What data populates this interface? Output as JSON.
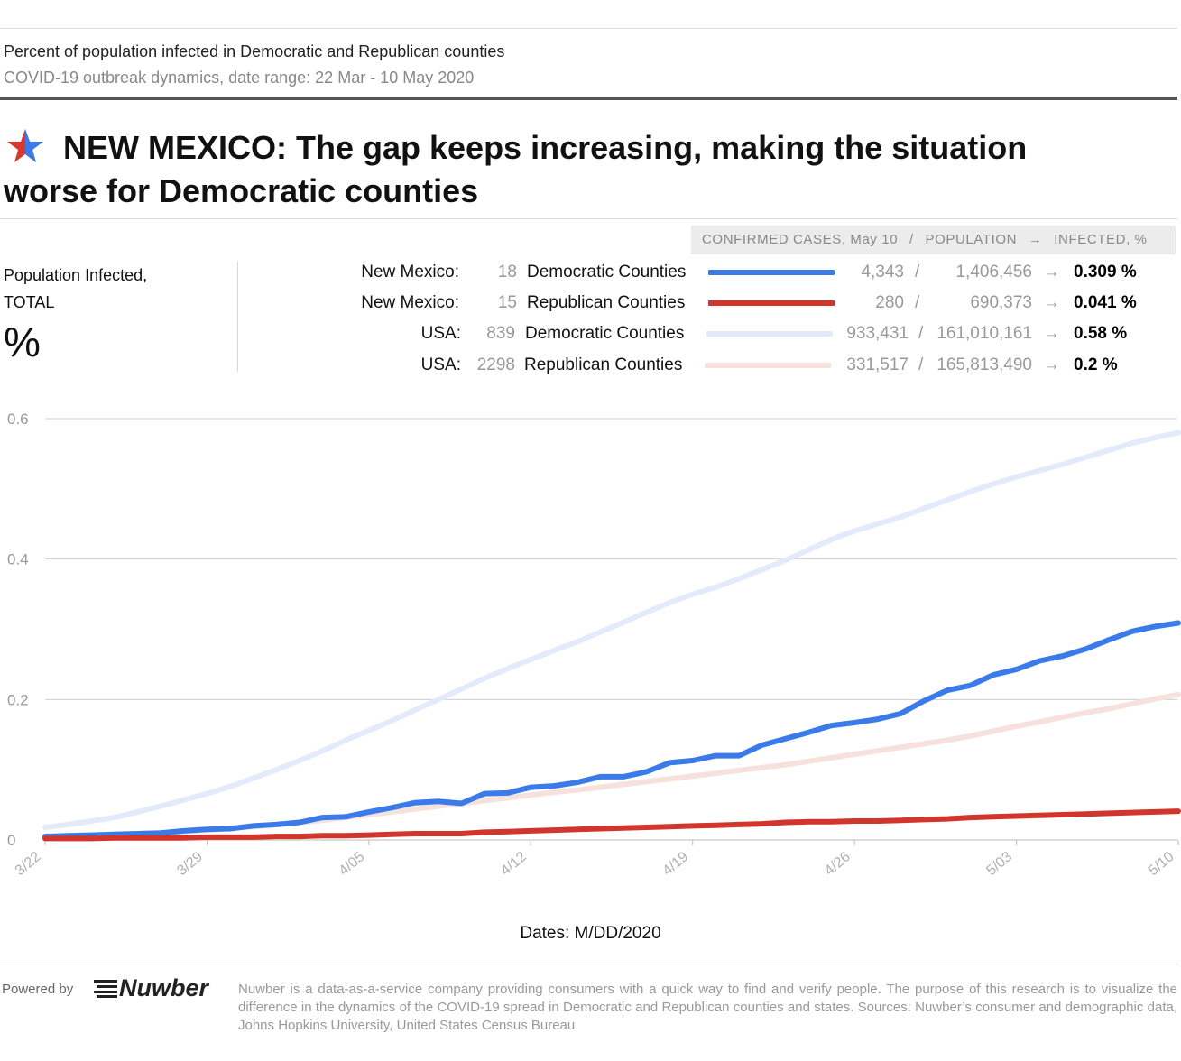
{
  "header": {
    "subtitle": "Percent of population infected in Democratic and Republican counties",
    "date_range": "COVID-19 outbreak dynamics, date range: 22 Mar - 10 May 2020",
    "headline": "NEW MEXICO: The gap keeps increasing, making the situation worse for Democratic counties",
    "star_colors": [
      "#d9382e",
      "#3b7be9"
    ]
  },
  "side_label": {
    "line1": "Population Infected,",
    "line2": "TOTAL",
    "unit": "%"
  },
  "legend": {
    "header": {
      "cases": "CONFIRMED CASES, May 10",
      "sep": "/",
      "population": "POPULATION",
      "arrow": "→",
      "infected": "INFECTED, %"
    },
    "rows": [
      {
        "region": "New Mexico:",
        "count": "18",
        "label": "Democratic Counties",
        "color": "#3b7be9",
        "cases": "4,343",
        "slash": "/",
        "population": "1,406,456",
        "arrow": "→",
        "infected": "0.309 %"
      },
      {
        "region": "New Mexico:",
        "count": "15",
        "label": "Republican Counties",
        "color": "#d2352c",
        "cases": "280",
        "slash": "/",
        "population": "690,373",
        "arrow": "→",
        "infected": "0.041 %"
      },
      {
        "region": "USA:",
        "count": "839",
        "label": "Democratic Counties",
        "color": "#e3ebfb",
        "cases": "933,431",
        "slash": "/",
        "population": "161,010,161",
        "arrow": "→",
        "infected": "0.58 %"
      },
      {
        "region": "USA:",
        "count": "2298",
        "label": "Republican Counties",
        "color": "#f6e1dd",
        "cases": "331,517",
        "slash": "/",
        "population": "165,813,490",
        "arrow": "→",
        "infected": "0.2 %"
      }
    ]
  },
  "chart_data": {
    "type": "line",
    "title": "Percent of population infected in Democratic and Republican counties",
    "xlabel": "Dates: M/DD/2020",
    "ylabel": "Population Infected, TOTAL %",
    "ylim": [
      0,
      0.6
    ],
    "yticks": [
      0,
      0.2,
      0.4,
      0.6
    ],
    "ytick_labels": [
      "0",
      "0.2",
      "0.4",
      "0.6"
    ],
    "xtick_labels": [
      "3/22",
      "3/29",
      "4/05",
      "4/12",
      "4/19",
      "4/26",
      "5/03",
      "5/10"
    ],
    "xtick_index": [
      0,
      7,
      14,
      21,
      28,
      35,
      42,
      49
    ],
    "x": [
      "3/22",
      "3/23",
      "3/24",
      "3/25",
      "3/26",
      "3/27",
      "3/28",
      "3/29",
      "3/30",
      "3/31",
      "4/01",
      "4/02",
      "4/03",
      "4/04",
      "4/05",
      "4/06",
      "4/07",
      "4/08",
      "4/09",
      "4/10",
      "4/11",
      "4/12",
      "4/13",
      "4/14",
      "4/15",
      "4/16",
      "4/17",
      "4/18",
      "4/19",
      "4/20",
      "4/21",
      "4/22",
      "4/23",
      "4/24",
      "4/25",
      "4/26",
      "4/27",
      "4/28",
      "4/29",
      "4/30",
      "5/01",
      "5/02",
      "5/03",
      "5/04",
      "5/05",
      "5/06",
      "5/07",
      "5/08",
      "5/09",
      "5/10"
    ],
    "grid": true,
    "series": [
      {
        "name": "USA: 839 Democratic Counties",
        "color": "#e3ebfb",
        "values": [
          0.018,
          0.022,
          0.027,
          0.032,
          0.04,
          0.048,
          0.057,
          0.066,
          0.076,
          0.088,
          0.1,
          0.113,
          0.127,
          0.142,
          0.156,
          0.17,
          0.185,
          0.2,
          0.215,
          0.23,
          0.244,
          0.257,
          0.27,
          0.282,
          0.296,
          0.31,
          0.324,
          0.338,
          0.35,
          0.36,
          0.372,
          0.385,
          0.398,
          0.413,
          0.428,
          0.44,
          0.45,
          0.46,
          0.472,
          0.484,
          0.496,
          0.507,
          0.517,
          0.526,
          0.535,
          0.545,
          0.555,
          0.565,
          0.573,
          0.58
        ]
      },
      {
        "name": "USA: 2298 Republican Counties",
        "color": "#f6e1dd",
        "values": [
          0.004,
          0.005,
          0.006,
          0.007,
          0.009,
          0.01,
          0.012,
          0.014,
          0.017,
          0.019,
          0.022,
          0.025,
          0.028,
          0.032,
          0.036,
          0.04,
          0.044,
          0.048,
          0.052,
          0.056,
          0.06,
          0.064,
          0.068,
          0.071,
          0.075,
          0.079,
          0.083,
          0.087,
          0.091,
          0.095,
          0.099,
          0.103,
          0.107,
          0.112,
          0.117,
          0.122,
          0.127,
          0.132,
          0.137,
          0.142,
          0.148,
          0.155,
          0.162,
          0.168,
          0.175,
          0.181,
          0.187,
          0.194,
          0.201,
          0.207
        ]
      },
      {
        "name": "New Mexico: 18 Democratic Counties",
        "color": "#3b7be9",
        "values": [
          0.005,
          0.006,
          0.007,
          0.008,
          0.009,
          0.01,
          0.013,
          0.015,
          0.016,
          0.02,
          0.022,
          0.025,
          0.032,
          0.033,
          0.04,
          0.046,
          0.053,
          0.055,
          0.052,
          0.066,
          0.067,
          0.075,
          0.077,
          0.082,
          0.09,
          0.09,
          0.097,
          0.11,
          0.113,
          0.12,
          0.12,
          0.135,
          0.144,
          0.153,
          0.163,
          0.167,
          0.172,
          0.18,
          0.198,
          0.213,
          0.22,
          0.235,
          0.243,
          0.255,
          0.262,
          0.272,
          0.285,
          0.297,
          0.304,
          0.309
        ]
      },
      {
        "name": "New Mexico: 15 Republican Counties",
        "color": "#d2352c",
        "values": [
          0.002,
          0.002,
          0.002,
          0.003,
          0.003,
          0.003,
          0.003,
          0.004,
          0.004,
          0.004,
          0.005,
          0.005,
          0.006,
          0.006,
          0.007,
          0.008,
          0.009,
          0.009,
          0.009,
          0.011,
          0.012,
          0.013,
          0.014,
          0.015,
          0.016,
          0.017,
          0.018,
          0.019,
          0.02,
          0.021,
          0.022,
          0.023,
          0.025,
          0.026,
          0.026,
          0.027,
          0.027,
          0.028,
          0.029,
          0.03,
          0.032,
          0.033,
          0.034,
          0.035,
          0.036,
          0.037,
          0.038,
          0.039,
          0.04,
          0.041
        ]
      }
    ]
  },
  "footer": {
    "powered_by": "Powered by",
    "logo": "Nuwber",
    "text": "Nuwber is a data-as-a-service company providing consumers with a quick way to find and verify people. The purpose of this research is to visualize the difference in the dynamics of the COVID-19 spread in Democratic and Republican counties and states. Sources: Nuwber’s consumer and demographic data, Johns Hopkins University, United States Census Bureau."
  }
}
